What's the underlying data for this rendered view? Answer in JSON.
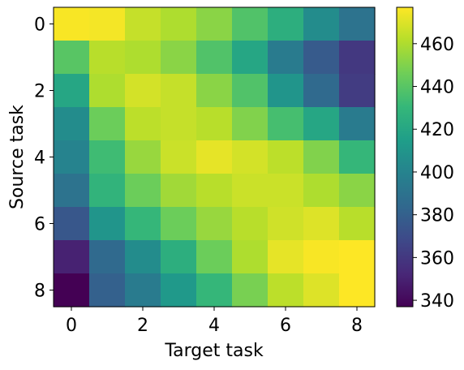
{
  "chart_data": {
    "type": "heatmap",
    "xlabel": "Target task",
    "ylabel": "Source task",
    "x_ticks": [
      0,
      2,
      4,
      6,
      8
    ],
    "y_ticks": [
      0,
      2,
      4,
      6,
      8
    ],
    "x": [
      0,
      1,
      2,
      3,
      4,
      5,
      6,
      7,
      8
    ],
    "y": [
      0,
      1,
      2,
      3,
      4,
      5,
      6,
      7,
      8
    ],
    "colormap": "viridis",
    "colorbar": {
      "min": 337,
      "max": 477,
      "ticks": [
        340,
        360,
        380,
        400,
        420,
        440,
        460
      ]
    },
    "values": [
      [
        476,
        475,
        465,
        460,
        452,
        438,
        425,
        405,
        390
      ],
      [
        440,
        462,
        460,
        452,
        438,
        420,
        395,
        377,
        360
      ],
      [
        420,
        460,
        468,
        465,
        452,
        438,
        410,
        385,
        362
      ],
      [
        405,
        445,
        463,
        465,
        462,
        450,
        435,
        420,
        395
      ],
      [
        400,
        433,
        455,
        466,
        472,
        468,
        463,
        450,
        430
      ],
      [
        390,
        428,
        445,
        457,
        462,
        466,
        466,
        460,
        452
      ],
      [
        375,
        410,
        430,
        445,
        455,
        462,
        467,
        470,
        462
      ],
      [
        350,
        385,
        405,
        425,
        445,
        460,
        472,
        476,
        477
      ],
      [
        337,
        380,
        395,
        412,
        430,
        448,
        463,
        470,
        477
      ]
    ]
  }
}
